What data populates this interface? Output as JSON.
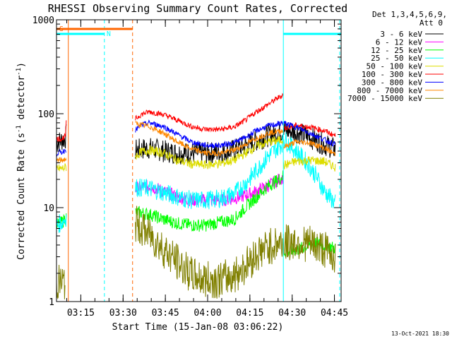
{
  "chart_data": {
    "type": "line",
    "title": "RHESSI Observing Summary Count Rates, Corrected",
    "xlabel": "Start Time (15-Jan-08 03:06:22)",
    "ylabel": "Corrected Count Rate (s",
    "ylabel_exp1": "-1",
    "ylabel_mid": " detector",
    "ylabel_exp2": "-1",
    "ylabel_end": ")",
    "yscale": "log",
    "ylim": [
      1,
      1000
    ],
    "xlim_minutes": [
      0,
      101
    ],
    "y_ticks": [
      {
        "value": 1,
        "label": "1"
      },
      {
        "value": 10,
        "label": "10"
      },
      {
        "value": 100,
        "label": "100"
      },
      {
        "value": 1000,
        "label": "1000"
      }
    ],
    "x_ticks": [
      {
        "minute": 8.63,
        "label": "03:15"
      },
      {
        "minute": 23.63,
        "label": "03:30"
      },
      {
        "minute": 38.63,
        "label": "03:45"
      },
      {
        "minute": 53.63,
        "label": "04:00"
      },
      {
        "minute": 68.63,
        "label": "04:15"
      },
      {
        "minute": 83.63,
        "label": "04:30"
      },
      {
        "minute": 98.63,
        "label": "04:45"
      }
    ],
    "legend_header": [
      "Det 1,3,4,5,6,9,",
      "Att 0"
    ],
    "series": [
      {
        "name": "3 - 6 keV",
        "color": "#000000",
        "segments": [
          [
            [
              0,
              50
            ],
            [
              1.8,
              52
            ],
            [
              3.2,
              55
            ],
            [
              3.5,
              60
            ]
          ],
          [
            [
              28,
              41
            ],
            [
              33,
              43
            ],
            [
              38,
              40
            ],
            [
              43,
              38
            ],
            [
              48,
              38
            ],
            [
              53,
              38
            ],
            [
              58,
              39
            ],
            [
              63,
              41
            ],
            [
              67,
              46
            ],
            [
              71,
              52
            ],
            [
              75,
              58
            ],
            [
              79,
              64
            ],
            [
              80.5,
              65
            ]
          ],
          [
            [
              80.5,
              66
            ],
            [
              85,
              64
            ],
            [
              90,
              56
            ],
            [
              95,
              47
            ],
            [
              99,
              42
            ]
          ]
        ]
      },
      {
        "name": "6 - 12 keV",
        "color": "#ff00ff",
        "segments": [
          [
            [
              28,
              16
            ],
            [
              33,
              17
            ],
            [
              38,
              15
            ],
            [
              43,
              13
            ],
            [
              48,
              12
            ],
            [
              53,
              12
            ],
            [
              58,
              12
            ],
            [
              63,
              12.5
            ],
            [
              67,
              13.5
            ],
            [
              71,
              15
            ],
            [
              75,
              17
            ],
            [
              79,
              20
            ],
            [
              80.5,
              21
            ]
          ]
        ]
      },
      {
        "name": "12 - 25 keV",
        "color": "#00ff00",
        "segments": [
          [
            [
              0,
              6.5
            ],
            [
              2,
              7
            ],
            [
              3.5,
              8
            ]
          ],
          [
            [
              28,
              9
            ],
            [
              33,
              8.5
            ],
            [
              38,
              7.5
            ],
            [
              43,
              6.8
            ],
            [
              48,
              6.5
            ],
            [
              53,
              6.5
            ],
            [
              58,
              7
            ],
            [
              63,
              7.5
            ],
            [
              67,
              10
            ],
            [
              71,
              13
            ],
            [
              75,
              17
            ],
            [
              79,
              20
            ],
            [
              80.5,
              22
            ]
          ],
          [
            [
              80.5,
              3.4
            ],
            [
              86,
              3.6
            ],
            [
              92,
              4.2
            ],
            [
              99,
              3.7
            ]
          ]
        ]
      },
      {
        "name": "25 - 50 keV",
        "color": "#00ffff",
        "segments": [
          [
            [
              0,
              6.5
            ],
            [
              2,
              7
            ],
            [
              3.5,
              8
            ]
          ],
          [
            [
              28,
              16.5
            ],
            [
              33,
              16
            ],
            [
              38,
              14.5
            ],
            [
              43,
              13
            ],
            [
              48,
              12
            ],
            [
              53,
              12
            ],
            [
              58,
              12.5
            ],
            [
              63,
              14
            ],
            [
              67,
              18
            ],
            [
              71,
              25
            ],
            [
              75,
              35
            ],
            [
              79,
              45
            ],
            [
              80.5,
              50
            ]
          ],
          [
            [
              80.5,
              55
            ],
            [
              85,
              40
            ],
            [
              89,
              30
            ],
            [
              92,
              22
            ],
            [
              95,
              15
            ],
            [
              99,
              11
            ]
          ]
        ]
      },
      {
        "name": "50 - 100 keV",
        "color": "#dddd00",
        "segments": [
          [
            [
              0,
              26
            ],
            [
              2,
              26
            ],
            [
              3.5,
              27
            ]
          ],
          [
            [
              28,
              35
            ],
            [
              30,
              39
            ],
            [
              33,
              41
            ],
            [
              38,
              38
            ],
            [
              43,
              32
            ],
            [
              48,
              29
            ],
            [
              53,
              28.5
            ],
            [
              58,
              29.5
            ],
            [
              63,
              32
            ],
            [
              67,
              38
            ],
            [
              71,
              45
            ],
            [
              75,
              50
            ],
            [
              79,
              52
            ],
            [
              80.5,
              54
            ]
          ],
          [
            [
              80.5,
              28
            ],
            [
              85,
              31
            ],
            [
              90,
              32
            ],
            [
              95,
              31
            ],
            [
              99,
              27
            ]
          ]
        ]
      },
      {
        "name": "100 - 300 keV",
        "color": "#ff0000",
        "segments": [
          [
            [
              0,
              54
            ],
            [
              2,
              54
            ],
            [
              3.2,
              58
            ],
            [
              3.5,
              85
            ]
          ],
          [
            [
              28,
              88
            ],
            [
              30,
              98
            ],
            [
              33,
              105
            ],
            [
              38,
              98
            ],
            [
              43,
              85
            ],
            [
              48,
              73
            ],
            [
              53,
              68
            ],
            [
              58,
              68
            ],
            [
              63,
              72
            ],
            [
              67,
              85
            ],
            [
              71,
              105
            ],
            [
              75,
              125
            ],
            [
              79,
              150
            ],
            [
              80.5,
              160
            ]
          ],
          [
            [
              80.5,
              70
            ],
            [
              85,
              75
            ],
            [
              90,
              72
            ],
            [
              95,
              66
            ],
            [
              99,
              58
            ]
          ]
        ]
      },
      {
        "name": "300 - 800 keV",
        "color": "#0000ff",
        "segments": [
          [
            [
              0,
              38
            ],
            [
              2,
              39
            ],
            [
              3.5,
              42
            ]
          ],
          [
            [
              28,
              67
            ],
            [
              30,
              75
            ],
            [
              33,
              80
            ],
            [
              38,
              73
            ],
            [
              43,
              60
            ],
            [
              48,
              50
            ],
            [
              53,
              46
            ],
            [
              58,
              46
            ],
            [
              63,
              49
            ],
            [
              67,
              56
            ],
            [
              71,
              66
            ],
            [
              75,
              74
            ],
            [
              79,
              78
            ],
            [
              80.5,
              80
            ]
          ],
          [
            [
              80.5,
              80
            ],
            [
              85,
              72
            ],
            [
              90,
              62
            ],
            [
              95,
              53
            ],
            [
              99,
              47
            ]
          ]
        ]
      },
      {
        "name": "800 - 7000 keV",
        "color": "#ff8800",
        "segments": [
          [
            [
              0,
              32
            ],
            [
              2,
              32
            ],
            [
              3.5,
              33
            ]
          ],
          [
            [
              28,
              78
            ],
            [
              30,
              76
            ],
            [
              33,
              73
            ],
            [
              38,
              62
            ],
            [
              43,
              50
            ],
            [
              48,
              42
            ],
            [
              53,
              38
            ],
            [
              58,
              38
            ],
            [
              63,
              41
            ],
            [
              67,
              47
            ],
            [
              71,
              55
            ],
            [
              75,
              62
            ],
            [
              79,
              65
            ],
            [
              80.5,
              66
            ]
          ],
          [
            [
              80.5,
              44
            ],
            [
              85,
              50
            ],
            [
              90,
              49
            ],
            [
              95,
              43
            ],
            [
              99,
              37
            ]
          ]
        ]
      },
      {
        "name": "7000 - 15000 keV",
        "color": "#808000",
        "segments": [
          [
            [
              0,
              1.6
            ],
            [
              2,
              1.6
            ],
            [
              3,
              1.5
            ]
          ],
          [
            [
              28,
              6.8
            ],
            [
              33,
              5.2
            ],
            [
              38,
              3.6
            ],
            [
              43,
              2.6
            ],
            [
              48,
              1.9
            ],
            [
              53,
              1.7
            ],
            [
              58,
              1.7
            ],
            [
              63,
              1.9
            ],
            [
              67,
              2.4
            ],
            [
              71,
              3.2
            ],
            [
              75,
              3.8
            ],
            [
              79,
              4.2
            ],
            [
              80.5,
              4.3
            ]
          ],
          [
            [
              80.5,
              4.2
            ],
            [
              85,
              4.3
            ],
            [
              90,
              4.1
            ],
            [
              95,
              3.6
            ],
            [
              99,
              3.0
            ]
          ]
        ]
      }
    ],
    "state_bars": [
      {
        "label": "S",
        "color": "#ff6600",
        "start": 0,
        "end": 27
      },
      {
        "label": "N",
        "color": "#00ffff",
        "start": 0,
        "end": 17
      },
      {
        "label": "",
        "color": "#00ffff",
        "start": 80.5,
        "end": 101
      }
    ],
    "vertical_markers": [
      {
        "minute": 4.2,
        "color": "#ff6600",
        "style": "solid"
      },
      {
        "minute": 17,
        "color": "#00ffff",
        "style": "dashed"
      },
      {
        "minute": 27,
        "color": "#ff6600",
        "style": "dashed"
      },
      {
        "minute": 80.5,
        "color": "#00ffff",
        "style": "solid"
      },
      {
        "minute": 100.5,
        "color": "#00ffff",
        "style": "dashed"
      }
    ]
  },
  "footer": {
    "timestamp": "13-Oct-2021 18:30"
  }
}
